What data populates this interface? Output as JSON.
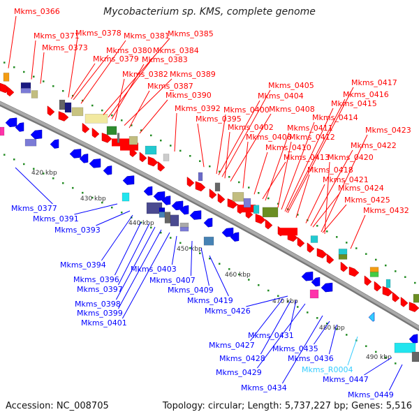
{
  "title": "Mycobacterium sp. KMS, complete genome",
  "footer": {
    "accession": "Accession: NC_008705",
    "summary": "Topology: circular; Length: 5,737,227 bp; Genes: 5,516"
  },
  "colors": {
    "forward": "#ff0000",
    "reverse": "#0000ff",
    "rna": "#33ccff",
    "backbone": "#999999",
    "tick": "#228b22"
  },
  "forward_labels": [
    "Mkms_0366",
    "Mkms_0371",
    "Mkms_0373",
    "Mkms_0378",
    "Mkms_0381",
    "Mkms_0385",
    "Mkms_0380",
    "Mkms_0384",
    "Mkms_0379",
    "Mkms_0383",
    "Mkms_0382",
    "Mkms_0389",
    "Mkms_0387",
    "Mkms_0390",
    "Mkms_0392",
    "Mkms_0395",
    "Mkms_0400",
    "Mkms_0405",
    "Mkms_0404",
    "Mkms_0408",
    "Mkms_0402",
    "Mkms_0406",
    "Mkms_0411",
    "Mkms_0412",
    "Mkms_0414",
    "Mkms_0415",
    "Mkms_0416",
    "Mkms_0417",
    "Mkms_0410",
    "Mkms_0413",
    "Mkms_0420",
    "Mkms_0418",
    "Mkms_0421",
    "Mkms_0422",
    "Mkms_0423",
    "Mkms_0424",
    "Mkms_0425",
    "Mkms_0432"
  ],
  "reverse_labels": [
    "Mkms_0377",
    "Mkms_0391",
    "Mkms_0393",
    "Mkms_0394",
    "Mkms_0396",
    "Mkms_0397",
    "Mkms_0398",
    "Mkms_0399",
    "Mkms_0401",
    "Mkms_0403",
    "Mkms_0407",
    "Mkms_0409",
    "Mkms_0419",
    "Mkms_0426",
    "Mkms_0431",
    "Mkms_0427",
    "Mkms_0428",
    "Mkms_0429",
    "Mkms_0435",
    "Mkms_0434",
    "Mkms_0436",
    "Mkms_R0004",
    "Mkms_0447",
    "Mkms_0449"
  ],
  "scale_labels": [
    "420 kbp",
    "430 kbp",
    "440 kbp",
    "450 kbp",
    "460 kbp",
    "470 kbp",
    "480 kbp",
    "490 kbp"
  ]
}
